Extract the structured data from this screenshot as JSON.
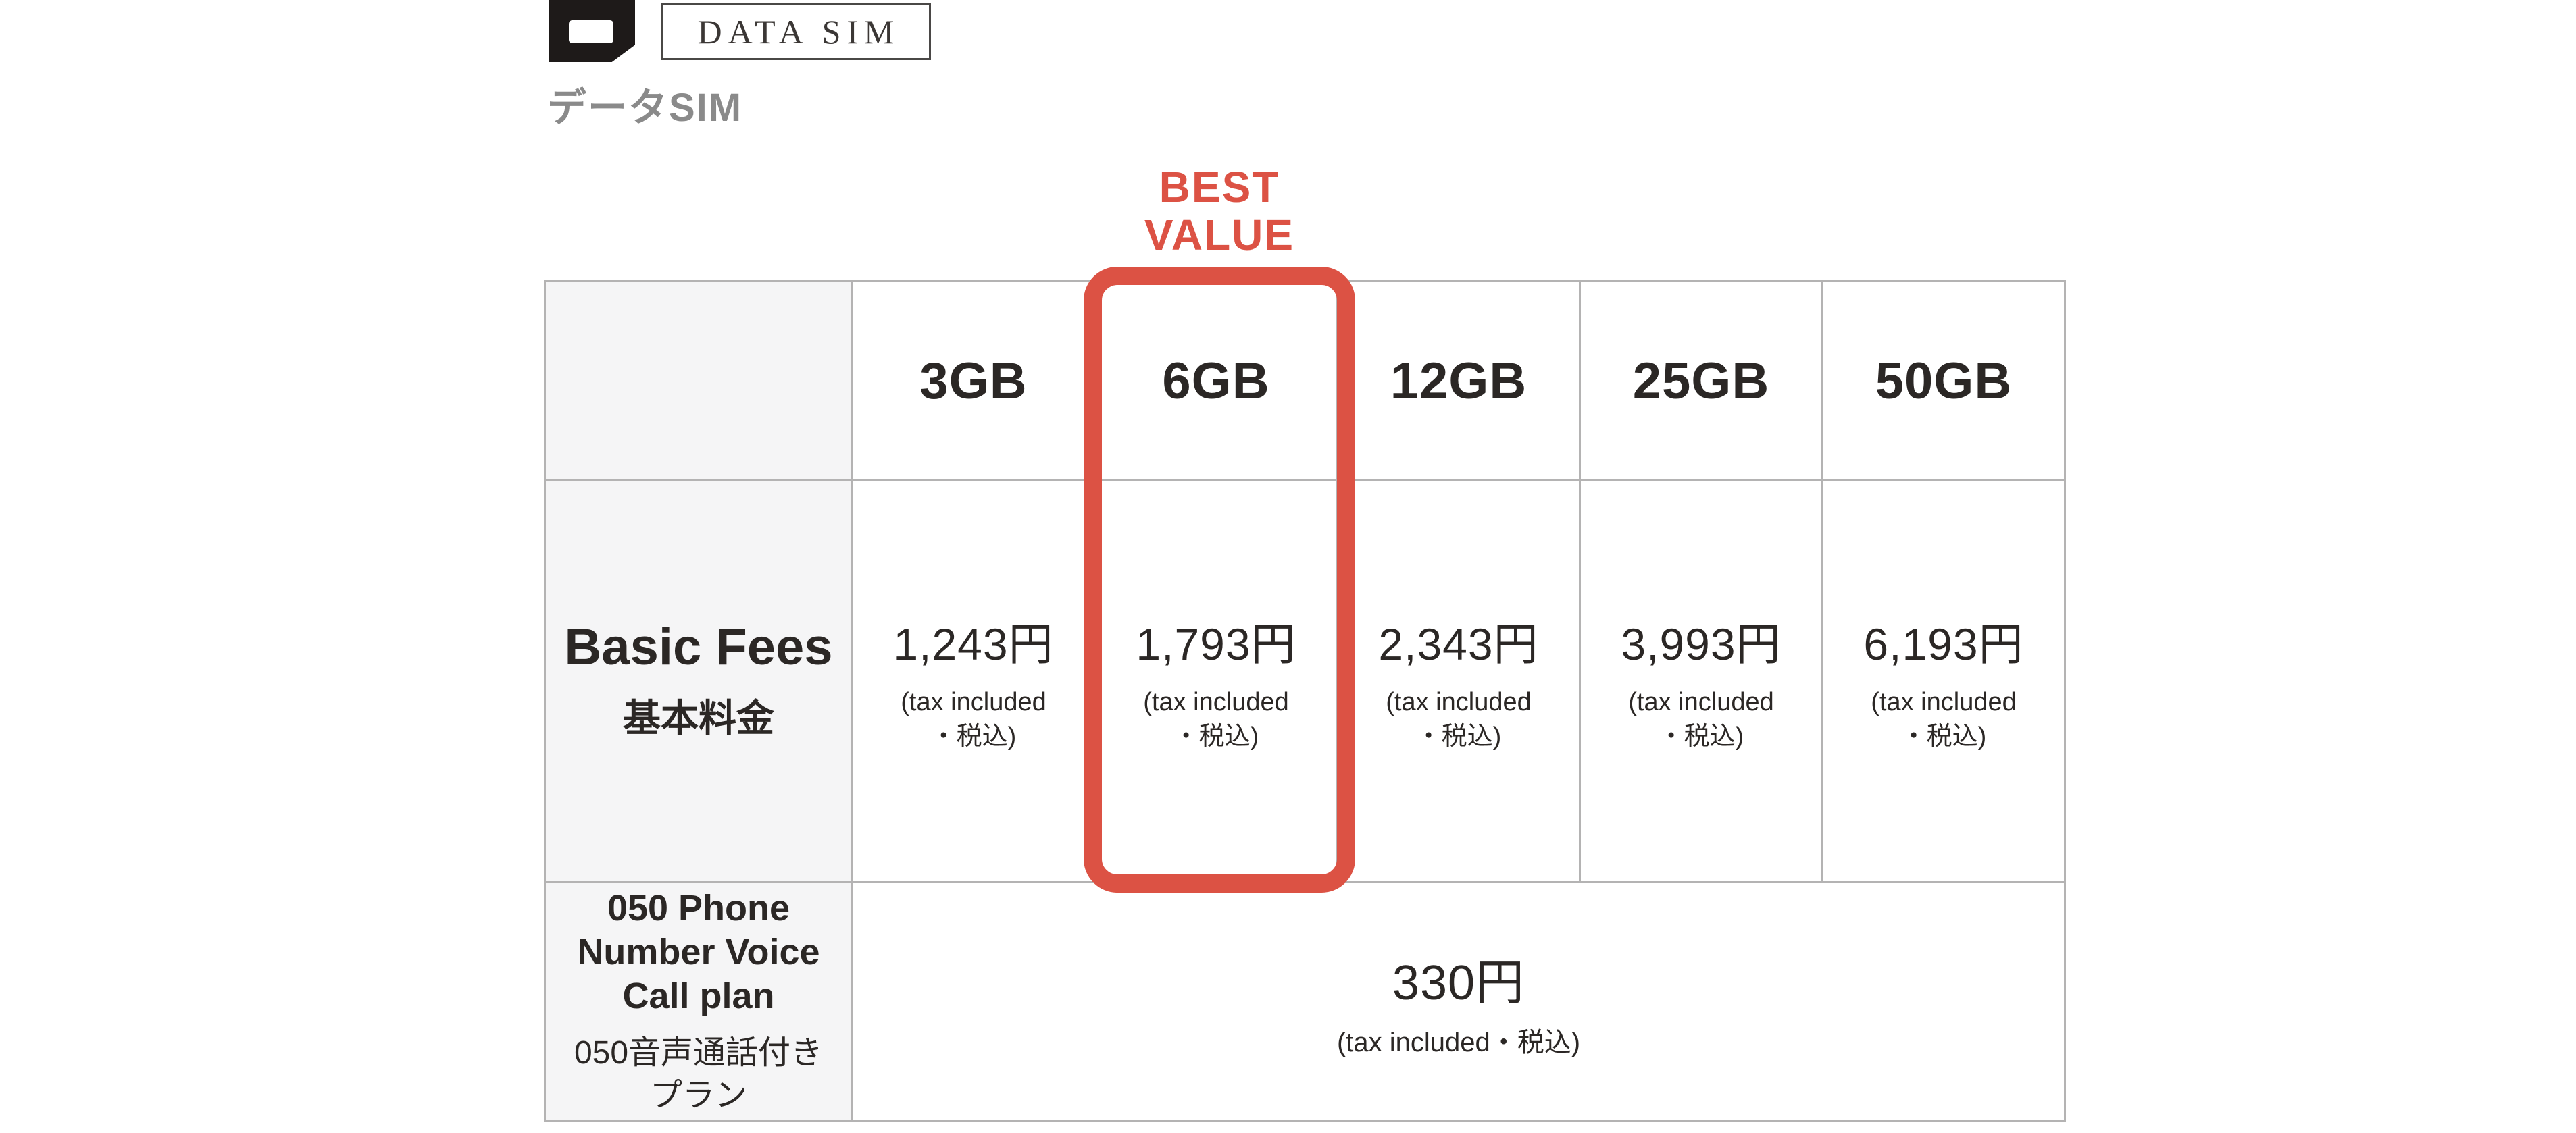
{
  "brand": {
    "logo_box_label": "DATA SIM",
    "product_name": "データSIM"
  },
  "badge": {
    "best_value": "BEST\nVALUE"
  },
  "table": {
    "columns": [
      "3GB",
      "6GB",
      "12GB",
      "25GB",
      "50GB"
    ],
    "highlight_column": "6GB",
    "basic_fees_row": {
      "label_en": "Basic Fees",
      "label_ja": "基本料金",
      "prices": [
        "1,243円",
        "1,793円",
        "2,343円",
        "3,993円",
        "6,193円"
      ],
      "tax_note": "(tax included\n・税込)"
    },
    "voice_plan_row": {
      "label_en": "050 Phone\nNumber Voice\nCall plan",
      "label_ja": "050音声通話付き\nプラン",
      "price": "330円",
      "tax_note": "(tax included・税込)"
    }
  },
  "colors": {
    "accent": "#DC5244",
    "table_border": "#b4b3b3",
    "label_bg": "#f5f5f6",
    "text": "#2b2725",
    "gray_text": "#8a8a8a"
  }
}
